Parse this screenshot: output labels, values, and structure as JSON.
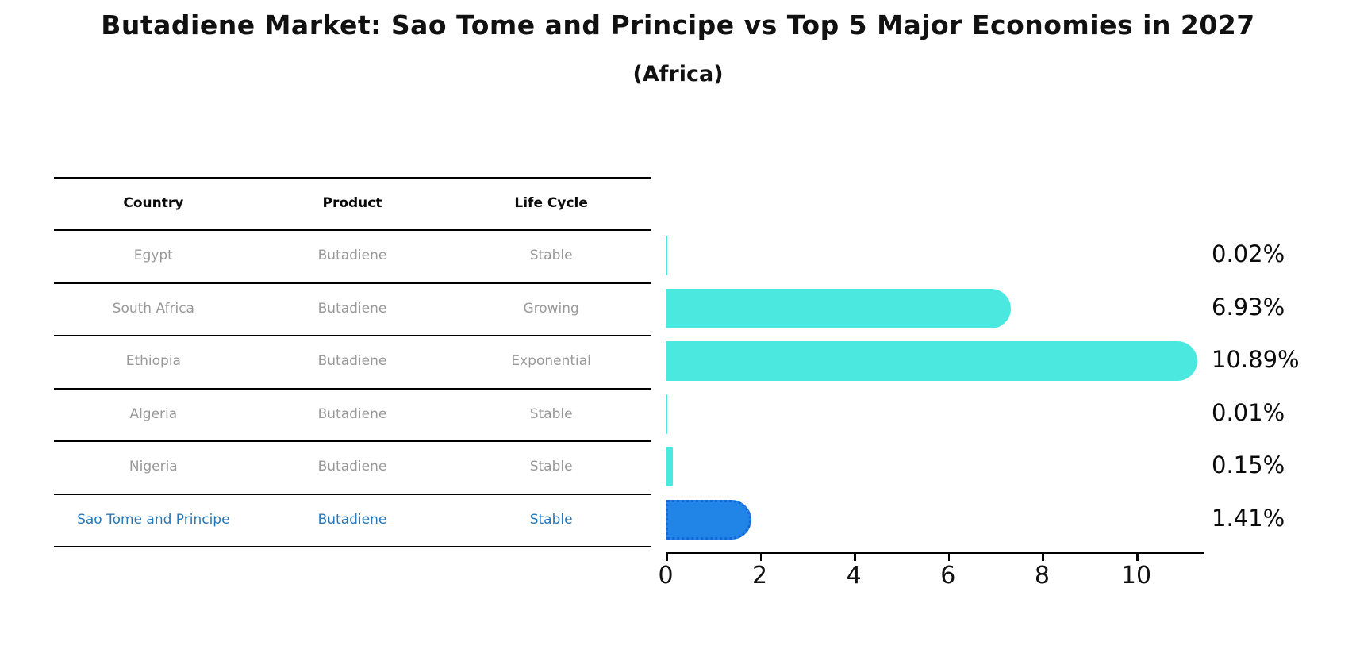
{
  "chart": {
    "title": "Butadiene Market: Sao Tome and Principe vs Top 5 Major Economies in 2027",
    "subtitle": "(Africa)"
  },
  "table": {
    "columns": [
      "Country",
      "Product",
      "Life Cycle"
    ],
    "rows": [
      {
        "country": "Egypt",
        "product": "Butadiene",
        "life_cycle": "Stable",
        "highlight": false
      },
      {
        "country": "South Africa",
        "product": "Butadiene",
        "life_cycle": "Growing",
        "highlight": false
      },
      {
        "country": "Ethiopia",
        "product": "Butadiene",
        "life_cycle": "Exponential",
        "highlight": false
      },
      {
        "country": "Algeria",
        "product": "Butadiene",
        "life_cycle": "Stable",
        "highlight": false
      },
      {
        "country": "Nigeria",
        "product": "Butadiene",
        "life_cycle": "Stable",
        "highlight": false
      },
      {
        "country": "Sao Tome and Principe",
        "product": "Butadiene",
        "life_cycle": "Stable",
        "highlight": true
      }
    ]
  },
  "chart_data": {
    "type": "bar",
    "orientation": "horizontal",
    "title": "Butadiene Market: Sao Tome and Principe vs Top 5 Major Economies in 2027 (Africa)",
    "categories": [
      "Egypt",
      "South Africa",
      "Ethiopia",
      "Algeria",
      "Nigeria",
      "Sao Tome and Principe"
    ],
    "values": [
      0.02,
      6.93,
      10.89,
      0.01,
      0.15,
      1.41
    ],
    "value_labels": [
      "0.02%",
      "6.93%",
      "10.89%",
      "0.01%",
      "0.15%",
      "1.41%"
    ],
    "x_ticks": [
      0,
      2,
      4,
      6,
      8,
      10
    ],
    "xlim": [
      0,
      11.43
    ],
    "grid": false,
    "legend": false
  },
  "colors": {
    "bar_default": "#4be8e0",
    "bar_highlight": "#2185e8",
    "bar_highlight_edge": "#1565d8",
    "highlight_text": "#2878b9",
    "row_text": "#999999",
    "header_text": "#0a0a0a"
  }
}
